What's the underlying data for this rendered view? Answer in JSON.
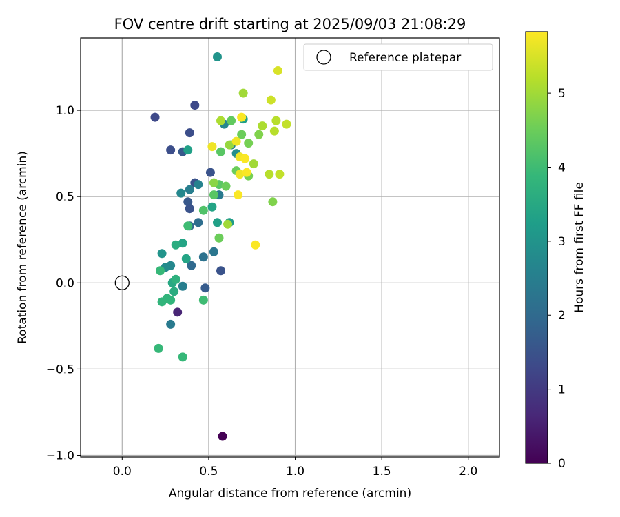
{
  "chart_data": {
    "type": "scatter",
    "title": "FOV centre drift starting at 2025/09/03 21:08:29",
    "xlabel": "Angular distance from reference (arcmin)",
    "ylabel": "Rotation from reference (arcmin)",
    "xlim": [
      -0.24,
      2.18
    ],
    "ylim": [
      -1.01,
      1.42
    ],
    "xticks": [
      0.0,
      0.5,
      1.0,
      1.5,
      2.0
    ],
    "xtick_labels": [
      "0.0",
      "0.5",
      "1.0",
      "1.5",
      "2.0"
    ],
    "yticks": [
      -1.0,
      -0.5,
      0.0,
      0.5,
      1.0
    ],
    "ytick_labels": [
      "−1.0",
      "−0.5",
      "0.0",
      "0.5",
      "1.0"
    ],
    "grid": true,
    "legend": {
      "location": "top-right",
      "label": "Reference platepar"
    },
    "reference_point": {
      "x": 0.0,
      "y": 0.0
    },
    "colorbar": {
      "label": "Hours from first FF file",
      "range": [
        0,
        5.83
      ],
      "ticks": [
        0,
        1,
        2,
        3,
        4,
        5
      ],
      "tick_labels": [
        "0",
        "1",
        "2",
        "3",
        "4",
        "5"
      ],
      "colormap": "viridis"
    },
    "colormap_stops": [
      "#440154",
      "#482878",
      "#3e4989",
      "#31688e",
      "#26828e",
      "#1f9e89",
      "#35b779",
      "#6ece58",
      "#b5de2b",
      "#fde725"
    ],
    "points": [
      {
        "x": 0.58,
        "y": -0.89,
        "h": 0.0
      },
      {
        "x": 0.32,
        "y": -0.17,
        "h": 0.6
      },
      {
        "x": 0.19,
        "y": 0.96,
        "h": 1.3
      },
      {
        "x": 0.42,
        "y": 1.03,
        "h": 1.3
      },
      {
        "x": 0.39,
        "y": 0.87,
        "h": 1.4
      },
      {
        "x": 0.28,
        "y": 0.77,
        "h": 1.4
      },
      {
        "x": 0.35,
        "y": 0.76,
        "h": 1.6
      },
      {
        "x": 0.51,
        "y": 0.64,
        "h": 1.5
      },
      {
        "x": 0.42,
        "y": 0.58,
        "h": 1.5
      },
      {
        "x": 0.38,
        "y": 0.47,
        "h": 1.6
      },
      {
        "x": 0.39,
        "y": 0.43,
        "h": 1.5
      },
      {
        "x": 0.57,
        "y": 0.07,
        "h": 1.5
      },
      {
        "x": 0.48,
        "y": -0.03,
        "h": 1.7
      },
      {
        "x": 0.4,
        "y": 0.1,
        "h": 2.0
      },
      {
        "x": 0.39,
        "y": 0.33,
        "h": 2.0
      },
      {
        "x": 0.44,
        "y": 0.35,
        "h": 2.1
      },
      {
        "x": 0.47,
        "y": 0.15,
        "h": 2.2
      },
      {
        "x": 0.53,
        "y": 0.18,
        "h": 2.3
      },
      {
        "x": 0.56,
        "y": 0.51,
        "h": 2.4
      },
      {
        "x": 0.39,
        "y": 0.54,
        "h": 2.5
      },
      {
        "x": 0.44,
        "y": 0.57,
        "h": 2.6
      },
      {
        "x": 0.34,
        "y": 0.52,
        "h": 2.7
      },
      {
        "x": 0.63,
        "y": 0.8,
        "h": 2.5
      },
      {
        "x": 0.59,
        "y": 0.92,
        "h": 2.7
      },
      {
        "x": 0.66,
        "y": 0.75,
        "h": 2.9
      },
      {
        "x": 0.28,
        "y": -0.24,
        "h": 2.4
      },
      {
        "x": 0.35,
        "y": -0.02,
        "h": 2.5
      },
      {
        "x": 0.28,
        "y": 0.1,
        "h": 2.7
      },
      {
        "x": 0.25,
        "y": 0.09,
        "h": 2.8
      },
      {
        "x": 0.23,
        "y": 0.17,
        "h": 3.0
      },
      {
        "x": 0.55,
        "y": 1.31,
        "h": 3.0
      },
      {
        "x": 0.7,
        "y": 0.95,
        "h": 3.3
      },
      {
        "x": 0.62,
        "y": 0.35,
        "h": 3.2
      },
      {
        "x": 0.55,
        "y": 0.35,
        "h": 3.3
      },
      {
        "x": 0.52,
        "y": 0.44,
        "h": 3.4
      },
      {
        "x": 0.38,
        "y": 0.77,
        "h": 3.3
      },
      {
        "x": 0.35,
        "y": 0.23,
        "h": 3.4
      },
      {
        "x": 0.37,
        "y": 0.14,
        "h": 3.4
      },
      {
        "x": 0.31,
        "y": 0.22,
        "h": 3.6
      },
      {
        "x": 0.29,
        "y": 0.0,
        "h": 3.5
      },
      {
        "x": 0.3,
        "y": -0.05,
        "h": 3.6
      },
      {
        "x": 0.31,
        "y": 0.02,
        "h": 3.7
      },
      {
        "x": 0.26,
        "y": -0.09,
        "h": 3.8
      },
      {
        "x": 0.28,
        "y": -0.1,
        "h": 3.8
      },
      {
        "x": 0.23,
        "y": -0.11,
        "h": 3.8
      },
      {
        "x": 0.22,
        "y": 0.07,
        "h": 3.9
      },
      {
        "x": 0.21,
        "y": -0.38,
        "h": 3.9
      },
      {
        "x": 0.35,
        "y": -0.43,
        "h": 3.9
      },
      {
        "x": 0.47,
        "y": -0.1,
        "h": 4.0
      },
      {
        "x": 0.38,
        "y": 0.33,
        "h": 4.0
      },
      {
        "x": 0.47,
        "y": 0.42,
        "h": 4.2
      },
      {
        "x": 0.53,
        "y": 0.51,
        "h": 4.3
      },
      {
        "x": 0.56,
        "y": 0.57,
        "h": 4.3
      },
      {
        "x": 0.57,
        "y": 0.76,
        "h": 4.3
      },
      {
        "x": 0.63,
        "y": 0.94,
        "h": 4.4
      },
      {
        "x": 0.56,
        "y": 0.26,
        "h": 4.5
      },
      {
        "x": 0.6,
        "y": 0.56,
        "h": 4.5
      },
      {
        "x": 0.66,
        "y": 0.65,
        "h": 4.5
      },
      {
        "x": 0.69,
        "y": 0.86,
        "h": 4.5
      },
      {
        "x": 0.73,
        "y": 0.62,
        "h": 4.6
      },
      {
        "x": 0.73,
        "y": 0.81,
        "h": 4.6
      },
      {
        "x": 0.79,
        "y": 0.86,
        "h": 4.7
      },
      {
        "x": 0.87,
        "y": 0.47,
        "h": 4.7
      },
      {
        "x": 0.53,
        "y": 0.58,
        "h": 4.8
      },
      {
        "x": 0.62,
        "y": 0.8,
        "h": 4.9
      },
      {
        "x": 0.7,
        "y": 1.1,
        "h": 5.0
      },
      {
        "x": 0.76,
        "y": 0.69,
        "h": 5.0
      },
      {
        "x": 0.61,
        "y": 0.34,
        "h": 5.0
      },
      {
        "x": 0.57,
        "y": 0.94,
        "h": 5.1
      },
      {
        "x": 0.81,
        "y": 0.91,
        "h": 5.1
      },
      {
        "x": 0.85,
        "y": 0.63,
        "h": 5.2
      },
      {
        "x": 0.88,
        "y": 0.88,
        "h": 5.2
      },
      {
        "x": 0.89,
        "y": 0.94,
        "h": 5.2
      },
      {
        "x": 0.91,
        "y": 0.63,
        "h": 5.3
      },
      {
        "x": 0.95,
        "y": 0.92,
        "h": 5.3
      },
      {
        "x": 0.86,
        "y": 1.06,
        "h": 5.4
      },
      {
        "x": 0.9,
        "y": 1.23,
        "h": 5.5
      },
      {
        "x": 0.52,
        "y": 0.79,
        "h": 5.7
      },
      {
        "x": 0.66,
        "y": 0.82,
        "h": 5.7
      },
      {
        "x": 0.68,
        "y": 0.73,
        "h": 5.7
      },
      {
        "x": 0.68,
        "y": 0.63,
        "h": 5.7
      },
      {
        "x": 0.71,
        "y": 0.72,
        "h": 5.8
      },
      {
        "x": 0.72,
        "y": 0.64,
        "h": 5.8
      },
      {
        "x": 0.67,
        "y": 0.51,
        "h": 5.8
      },
      {
        "x": 0.69,
        "y": 0.96,
        "h": 5.8
      },
      {
        "x": 0.77,
        "y": 0.22,
        "h": 5.8
      }
    ]
  }
}
